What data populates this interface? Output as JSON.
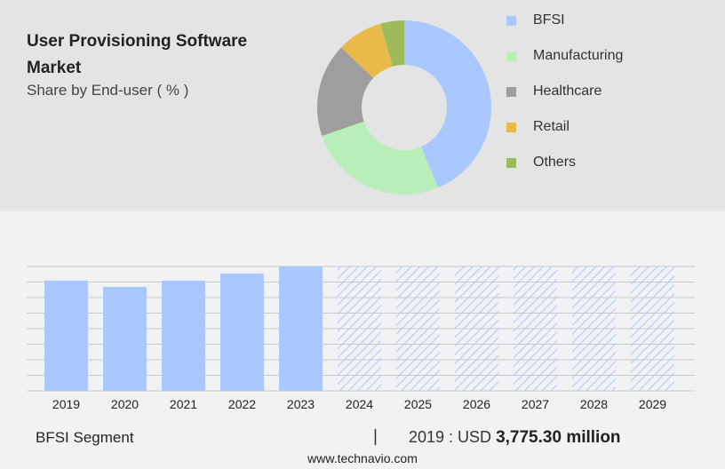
{
  "title": "User Provisioning Software Market",
  "subtitle": "Share by End-user ( % )",
  "chart_data": [
    {
      "type": "pie",
      "donut": true,
      "categories": [
        "BFSI",
        "Manufacturing",
        "Healthcare",
        "Retail",
        "Others"
      ],
      "values": [
        43.6,
        26.1,
        17.4,
        8.5,
        4.4
      ],
      "colors": [
        "#a8c8ff",
        "#b8eeb8",
        "#9e9e9e",
        "#e8ba4a",
        "#9dbb5a"
      ],
      "legend": "right"
    },
    {
      "type": "bar",
      "categories": [
        "2019",
        "2020",
        "2021",
        "2022",
        "2023",
        "2024",
        "2025",
        "2026",
        "2027",
        "2028",
        "2029"
      ],
      "values": [
        3775.3,
        3560,
        3775,
        4020,
        4260,
        null,
        null,
        null,
        null,
        null,
        null
      ],
      "forecast_hatched": [
        "2024",
        "2025",
        "2026",
        "2027",
        "2028",
        "2029"
      ],
      "color": "#a8c8ff",
      "grid": true,
      "ylim": [
        0,
        4260
      ]
    }
  ],
  "footer": {
    "segment": "BFSI Segment",
    "separator": "|",
    "year_label": "2019 : USD",
    "value": "3,775.30 million",
    "url": "www.technavio.com"
  }
}
